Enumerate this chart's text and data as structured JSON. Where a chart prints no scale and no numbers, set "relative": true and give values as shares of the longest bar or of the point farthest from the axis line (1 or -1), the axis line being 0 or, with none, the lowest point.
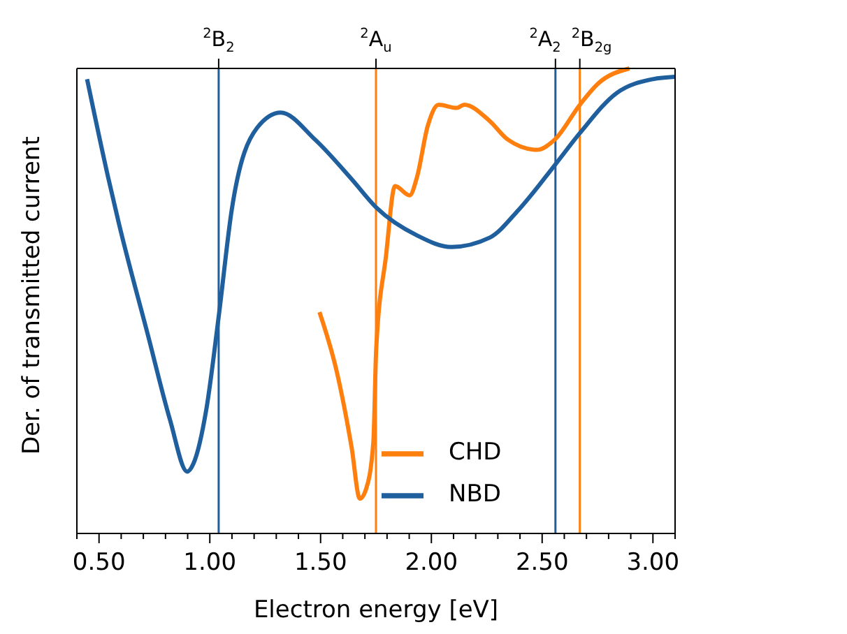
{
  "chart_data": {
    "type": "line",
    "xlabel": "Electron energy [eV]",
    "ylabel": "Der. of transmitted current",
    "relative": true,
    "xlim": [
      0.4,
      3.1
    ],
    "xticks": [
      {
        "value": 0.4,
        "label": null
      },
      {
        "value": 0.5,
        "label": "0.50"
      },
      {
        "value": 0.6,
        "label": null
      },
      {
        "value": 0.7,
        "label": null
      },
      {
        "value": 0.8,
        "label": null
      },
      {
        "value": 0.9,
        "label": null
      },
      {
        "value": 1.0,
        "label": "1.00"
      },
      {
        "value": 1.1,
        "label": null
      },
      {
        "value": 1.2,
        "label": null
      },
      {
        "value": 1.3,
        "label": null
      },
      {
        "value": 1.4,
        "label": null
      },
      {
        "value": 1.5,
        "label": "1.50"
      },
      {
        "value": 1.6,
        "label": null
      },
      {
        "value": 1.7,
        "label": null
      },
      {
        "value": 1.8,
        "label": null
      },
      {
        "value": 1.9,
        "label": null
      },
      {
        "value": 2.0,
        "label": "2.00"
      },
      {
        "value": 2.1,
        "label": null
      },
      {
        "value": 2.2,
        "label": null
      },
      {
        "value": 2.3,
        "label": null
      },
      {
        "value": 2.4,
        "label": null
      },
      {
        "value": 2.5,
        "label": "2.50"
      },
      {
        "value": 2.6,
        "label": null
      },
      {
        "value": 2.7,
        "label": null
      },
      {
        "value": 2.8,
        "label": null
      },
      {
        "value": 2.9,
        "label": null
      },
      {
        "value": 3.0,
        "label": "3.00"
      },
      {
        "value": 3.1,
        "label": null
      }
    ],
    "series": [
      {
        "name": "CHD",
        "color": "#ff7f0e",
        "x": [
          1.495,
          1.574,
          1.64,
          1.677,
          1.705,
          1.738,
          1.751,
          1.795,
          1.836,
          1.902,
          1.935,
          1.984,
          2.033,
          2.115,
          2.148,
          2.263,
          2.345,
          2.476,
          2.557,
          2.672,
          2.754,
          2.894
        ],
        "values": [
          0.476,
          0.346,
          0.185,
          0.075,
          0.095,
          0.195,
          0.396,
          0.596,
          0.747,
          0.727,
          0.766,
          0.877,
          0.922,
          0.915,
          0.922,
          0.887,
          0.847,
          0.825,
          0.847,
          0.923,
          0.968,
          1.0
        ]
      },
      {
        "name": "NBD",
        "color": "#1f5f9e",
        "x": [
          0.446,
          0.541,
          0.59,
          0.721,
          0.82,
          0.898,
          0.926,
          0.984,
          1.04,
          1.099,
          1.213,
          1.32,
          1.475,
          1.64,
          1.751,
          1.935,
          2.09,
          2.263,
          2.394,
          2.557,
          2.672,
          2.836,
          3.0,
          3.098
        ],
        "values": [
          0.977,
          0.766,
          0.666,
          0.426,
          0.245,
          0.133,
          0.15,
          0.266,
          0.466,
          0.696,
          0.872,
          0.905,
          0.847,
          0.762,
          0.701,
          0.641,
          0.616,
          0.636,
          0.696,
          0.792,
          0.862,
          0.947,
          0.977,
          0.982
        ]
      }
    ],
    "ref_lines": [
      {
        "axis": "x",
        "value": 1.04,
        "label": "$^{2}$B$_{2}$",
        "color": "#1f5f9e"
      },
      {
        "axis": "x",
        "value": 1.75,
        "label": "$^{2}$A$_{u}$",
        "color": "#ff7f0e"
      },
      {
        "axis": "x",
        "value": 2.56,
        "label": "$^{2}$A$_{2}$",
        "color": "#1f5f9e"
      },
      {
        "axis": "x",
        "value": 2.67,
        "label": "$^{2}$B$_{2g}$",
        "color": "#ff7f0e"
      }
    ],
    "legend": "bottom right",
    "marker": "none",
    "line_style": "solid"
  }
}
